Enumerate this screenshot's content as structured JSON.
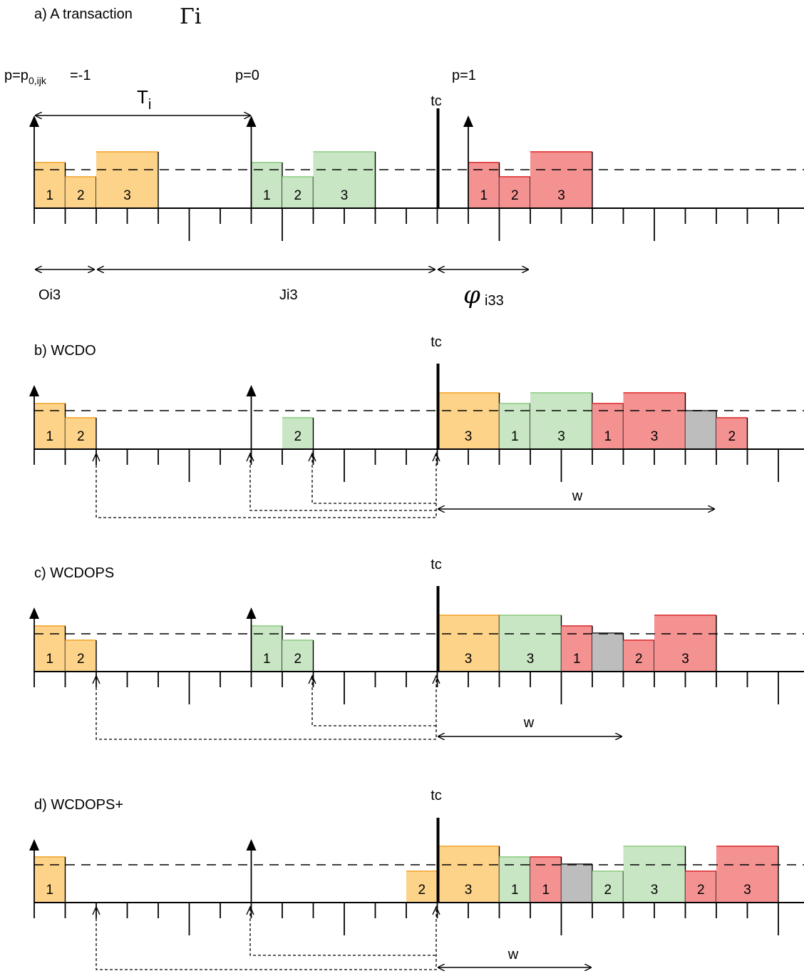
{
  "colors": {
    "orange": "#fdd38a",
    "orange_edge": "#f4b24a",
    "green": "#c9e6c4",
    "green_edge": "#9fd496",
    "red": "#f49292",
    "red_edge": "#e24a4a",
    "gray": "#bdbdbd",
    "gray_edge": "#555555"
  },
  "panels": [
    {
      "title": "a) A transaction",
      "title_symbol": "Γi",
      "tc_label": "tc",
      "tick_lengths": [
        "short",
        "short",
        "short",
        "short",
        "short",
        "long",
        "short",
        "short",
        "long",
        "short",
        "short",
        "short",
        "short",
        "short",
        "short",
        "long",
        "short",
        "short",
        "short",
        "short",
        "long",
        "short",
        "short",
        "short",
        "short",
        "short"
      ],
      "period_labels": {
        "p_minus1": {
          "main": "p=p",
          "sub": "0,ijk",
          "tail": "=-1"
        },
        "p0": "p=0",
        "p1": "p=1"
      },
      "period_span_label": "T",
      "period_span_sub": "i",
      "offset_labels": {
        "o": "Oi3",
        "j": "Ji3",
        "phi": "φ",
        "phi_sub": "i33"
      },
      "blocks": [
        {
          "label": "1",
          "color": "orange",
          "start": 0,
          "width": 1,
          "level": "high"
        },
        {
          "label": "2",
          "color": "orange",
          "start": 1,
          "width": 1,
          "level": "low"
        },
        {
          "label": "3",
          "color": "orange",
          "start": 2,
          "width": 2,
          "level": "top"
        },
        {
          "label": "1",
          "color": "green",
          "start": 7,
          "width": 1,
          "level": "high"
        },
        {
          "label": "2",
          "color": "green",
          "start": 8,
          "width": 1,
          "level": "low"
        },
        {
          "label": "3",
          "color": "green",
          "start": 9,
          "width": 2,
          "level": "top"
        },
        {
          "label": "1",
          "color": "red",
          "start": 14,
          "width": 1,
          "level": "high"
        },
        {
          "label": "2",
          "color": "red",
          "start": 15,
          "width": 1,
          "level": "low"
        },
        {
          "label": "3",
          "color": "red",
          "start": 16,
          "width": 2,
          "level": "top"
        }
      ]
    },
    {
      "title": "b) WCDO",
      "tc_label": "tc",
      "w_label": "w",
      "tick_lengths": [
        "short",
        "short",
        "short",
        "short",
        "short",
        "long",
        "short",
        "short",
        "short",
        "short",
        "long",
        "short",
        "short",
        "short",
        "short",
        "short",
        "short",
        "long",
        "short",
        "short",
        "short",
        "short",
        "short",
        "short",
        "long",
        "short"
      ],
      "blocks": [
        {
          "label": "1",
          "color": "orange",
          "start": 0,
          "width": 1,
          "level": "high"
        },
        {
          "label": "2",
          "color": "orange",
          "start": 1,
          "width": 1,
          "level": "low"
        },
        {
          "label": "2",
          "color": "green",
          "start": 8,
          "width": 1,
          "level": "low"
        },
        {
          "label": "3",
          "color": "orange",
          "start": 13,
          "width": 2,
          "level": "top"
        },
        {
          "label": "1",
          "color": "green",
          "start": 15,
          "width": 1,
          "level": "high"
        },
        {
          "label": "3",
          "color": "green",
          "start": 16,
          "width": 2,
          "level": "top"
        },
        {
          "label": "1",
          "color": "red",
          "start": 18,
          "width": 1,
          "level": "high"
        },
        {
          "label": "3",
          "color": "red",
          "start": 19,
          "width": 2,
          "level": "top"
        },
        {
          "label": "",
          "color": "gray",
          "start": 21,
          "width": 1,
          "level": "mid"
        },
        {
          "label": "2",
          "color": "red",
          "start": 22,
          "width": 1,
          "level": "low"
        }
      ]
    },
    {
      "title": "c) WCDOPS",
      "tc_label": "tc",
      "w_label": "w",
      "tick_lengths": [
        "short",
        "short",
        "short",
        "short",
        "short",
        "long",
        "short",
        "short",
        "short",
        "short",
        "long",
        "short",
        "short",
        "short",
        "short",
        "short",
        "short",
        "long",
        "short",
        "short",
        "short",
        "short",
        "short",
        "short",
        "long",
        "short"
      ],
      "blocks": [
        {
          "label": "1",
          "color": "orange",
          "start": 0,
          "width": 1,
          "level": "high"
        },
        {
          "label": "2",
          "color": "orange",
          "start": 1,
          "width": 1,
          "level": "low"
        },
        {
          "label": "1",
          "color": "green",
          "start": 7,
          "width": 1,
          "level": "high"
        },
        {
          "label": "2",
          "color": "green",
          "start": 8,
          "width": 1,
          "level": "low"
        },
        {
          "label": "3",
          "color": "orange",
          "start": 13,
          "width": 2,
          "level": "top"
        },
        {
          "label": "3",
          "color": "green",
          "start": 15,
          "width": 2,
          "level": "top"
        },
        {
          "label": "1",
          "color": "red",
          "start": 17,
          "width": 1,
          "level": "high"
        },
        {
          "label": "",
          "color": "gray",
          "start": 18,
          "width": 1,
          "level": "mid"
        },
        {
          "label": "2",
          "color": "red",
          "start": 19,
          "width": 1,
          "level": "low"
        },
        {
          "label": "3",
          "color": "red",
          "start": 20,
          "width": 2,
          "level": "top"
        }
      ]
    },
    {
      "title": "d) WCDOPS+",
      "tc_label": "tc",
      "w_label": "w",
      "tick_lengths": [
        "short",
        "short",
        "short",
        "short",
        "short",
        "long",
        "short",
        "short",
        "short",
        "short",
        "long",
        "short",
        "short",
        "short",
        "short",
        "short",
        "short",
        "long",
        "short",
        "short",
        "short",
        "short",
        "short",
        "short",
        "long",
        "short"
      ],
      "blocks": [
        {
          "label": "1",
          "color": "orange",
          "start": 0,
          "width": 1,
          "level": "high"
        },
        {
          "label": "2",
          "color": "orange",
          "start": 12,
          "width": 1,
          "level": "low"
        },
        {
          "label": "3",
          "color": "orange",
          "start": 13,
          "width": 2,
          "level": "top"
        },
        {
          "label": "1",
          "color": "green",
          "start": 15,
          "width": 1,
          "level": "high"
        },
        {
          "label": "1",
          "color": "red",
          "start": 16,
          "width": 1,
          "level": "high"
        },
        {
          "label": "",
          "color": "gray",
          "start": 17,
          "width": 1,
          "level": "mid"
        },
        {
          "label": "2",
          "color": "green",
          "start": 18,
          "width": 1,
          "level": "low"
        },
        {
          "label": "3",
          "color": "green",
          "start": 19,
          "width": 2,
          "level": "top"
        },
        {
          "label": "2",
          "color": "red",
          "start": 21,
          "width": 1,
          "level": "low"
        },
        {
          "label": "3",
          "color": "red",
          "start": 22,
          "width": 2,
          "level": "top"
        }
      ]
    }
  ]
}
